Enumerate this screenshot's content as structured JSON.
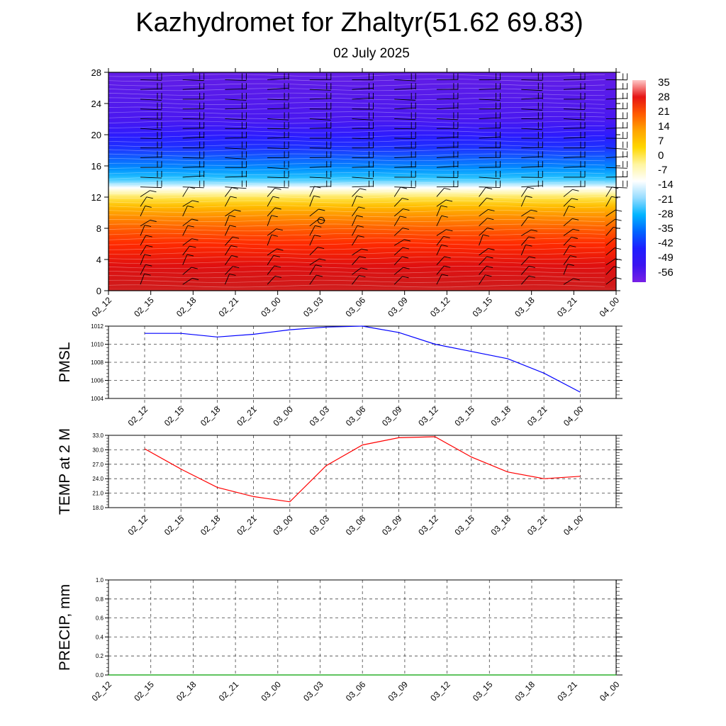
{
  "header": {
    "title": "Kazhydromet for Zhaltyr(51.62 69.83)",
    "subtitle": "02 July 2025"
  },
  "chart_data": [
    {
      "type": "heatmap",
      "title": "",
      "xlabel": "",
      "ylabel": "",
      "x_tick_labels": [
        "02_12",
        "02_15",
        "02_18",
        "02_21",
        "03_00",
        "03_03",
        "03_06",
        "03_09",
        "03_12",
        "03_15",
        "03_18",
        "03_21",
        "04_00"
      ],
      "y_ticks": [
        0,
        4,
        8,
        12,
        16,
        20,
        24,
        28
      ],
      "ylim": [
        0,
        28
      ],
      "temperature_by_level": [
        {
          "level": 0,
          "value": 31
        },
        {
          "level": 2,
          "value": 27
        },
        {
          "level": 4,
          "value": 22
        },
        {
          "level": 6,
          "value": 18
        },
        {
          "level": 8,
          "value": 12
        },
        {
          "level": 10,
          "value": 4
        },
        {
          "level": 12,
          "value": -5
        },
        {
          "level": 13.2,
          "value": -12
        },
        {
          "level": 14,
          "value": -18
        },
        {
          "level": 16,
          "value": -30
        },
        {
          "level": 18,
          "value": -40
        },
        {
          "level": 20,
          "value": -50
        },
        {
          "level": 22,
          "value": -56
        },
        {
          "level": 28,
          "value": -60
        }
      ],
      "colorbar": {
        "labels": [
          "35",
          "28",
          "21",
          "14",
          "7",
          "0",
          "-7",
          "-14",
          "-21",
          "-28",
          "-35",
          "-42",
          "-49",
          "-56"
        ],
        "values": [
          35,
          28,
          21,
          14,
          7,
          0,
          -7,
          -14,
          -21,
          -28,
          -35,
          -42,
          -49,
          -56
        ],
        "colors": [
          "#ffc8c8",
          "#e61414",
          "#ff5a00",
          "#ffa500",
          "#ffd700",
          "#fff5a0",
          "#ffffff",
          "#96dcff",
          "#00b4ff",
          "#0064ff",
          "#1e1eff",
          "#3c14f0",
          "#7820e6"
        ]
      },
      "overlay": "wind barbs"
    },
    {
      "type": "line",
      "ylabel": "PMSL",
      "x_tick_labels": [
        "02_12",
        "02_15",
        "02_18",
        "02_21",
        "03_00",
        "03_03",
        "03_06",
        "03_09",
        "03_12",
        "03_15",
        "03_18",
        "03_21",
        "04_00"
      ],
      "y_tick_labels": [
        "1004",
        "1006",
        "1008",
        "1010",
        "1012"
      ],
      "ylim": [
        1004,
        1012
      ],
      "grid": true,
      "series": [
        {
          "color": "#0000ff",
          "values": [
            1011.2,
            1011.2,
            1010.8,
            1011.1,
            1011.6,
            1011.9,
            1012.0,
            1011.3,
            1010.0,
            1009.2,
            1008.4,
            1006.8,
            1004.7
          ]
        }
      ]
    },
    {
      "type": "line",
      "ylabel": "TEMP at 2 M",
      "x_tick_labels": [
        "02_12",
        "02_15",
        "02_18",
        "02_21",
        "03_00",
        "03_03",
        "03_06",
        "03_09",
        "03_12",
        "03_15",
        "03_18",
        "03_21",
        "04_00"
      ],
      "y_tick_labels": [
        "18.0",
        "21.0",
        "24.0",
        "27.0",
        "30.0",
        "33.0"
      ],
      "ylim": [
        18,
        33
      ],
      "grid": true,
      "series": [
        {
          "color": "#ff0000",
          "values": [
            30.2,
            26.0,
            22.2,
            20.3,
            19.2,
            26.7,
            31.0,
            32.5,
            32.7,
            28.5,
            25.4,
            24.0,
            24.5
          ]
        }
      ]
    },
    {
      "type": "line",
      "ylabel": "PRECIP, mm",
      "x_tick_labels": [
        "02_12",
        "02_15",
        "02_18",
        "02_21",
        "03_00",
        "03_03",
        "03_06",
        "03_09",
        "03_12",
        "03_15",
        "03_18",
        "03_21",
        "04_00"
      ],
      "y_tick_labels": [
        "0.0",
        "0.2",
        "0.4",
        "0.6",
        "0.8",
        "1.0"
      ],
      "ylim": [
        0,
        1
      ],
      "grid": true,
      "series": [
        {
          "color": "#00a000",
          "values": [
            0,
            0,
            0,
            0,
            0,
            0,
            0,
            0,
            0,
            0,
            0,
            0,
            0
          ]
        }
      ]
    }
  ]
}
